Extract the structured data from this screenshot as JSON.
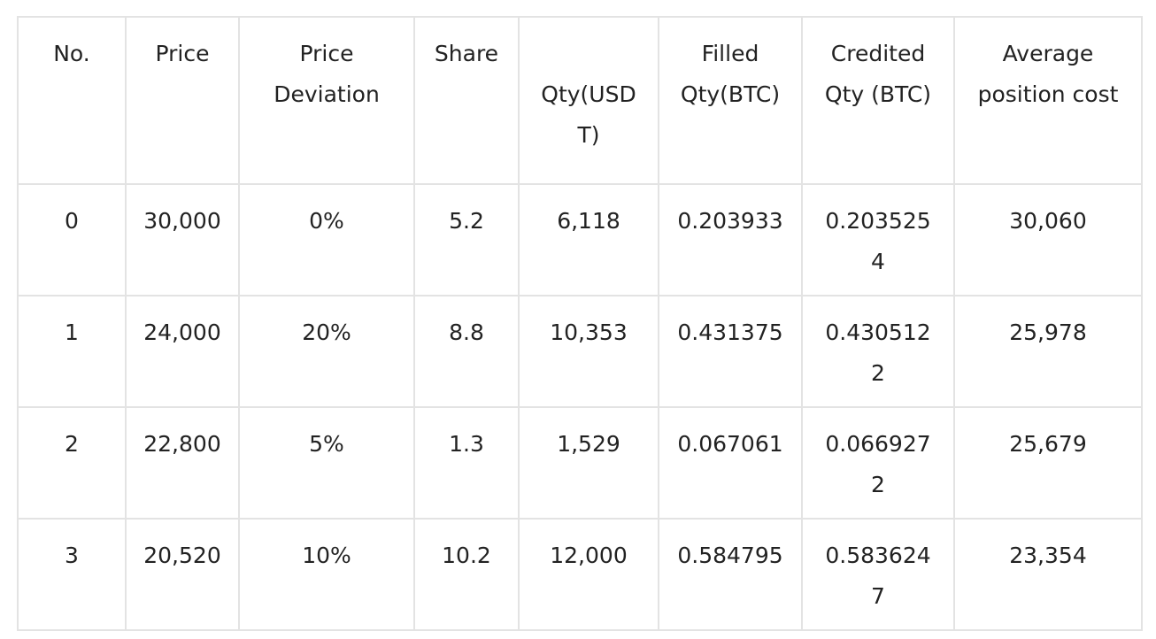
{
  "table": {
    "headers": [
      "No.",
      "Price",
      "Price Deviation",
      "Share",
      "Qty(USDT)",
      "Filled Qty(BTC)",
      "Credited Qty (BTC)",
      "Average position cost"
    ],
    "rows": [
      [
        "0",
        "30,000",
        "0%",
        "5.2",
        "6,118",
        "0.203933",
        "0.2035254",
        "30,060"
      ],
      [
        "1",
        "24,000",
        "20%",
        "8.8",
        "10,353",
        "0.431375",
        "0.4305122",
        "25,978"
      ],
      [
        "2",
        "22,800",
        "5%",
        "1.3",
        "1,529",
        "0.067061",
        "0.0669272",
        "25,679"
      ],
      [
        "3",
        "20,520",
        "10%",
        "10.2",
        "12,000",
        "0.584795",
        "0.5836247",
        "23,354"
      ]
    ]
  }
}
